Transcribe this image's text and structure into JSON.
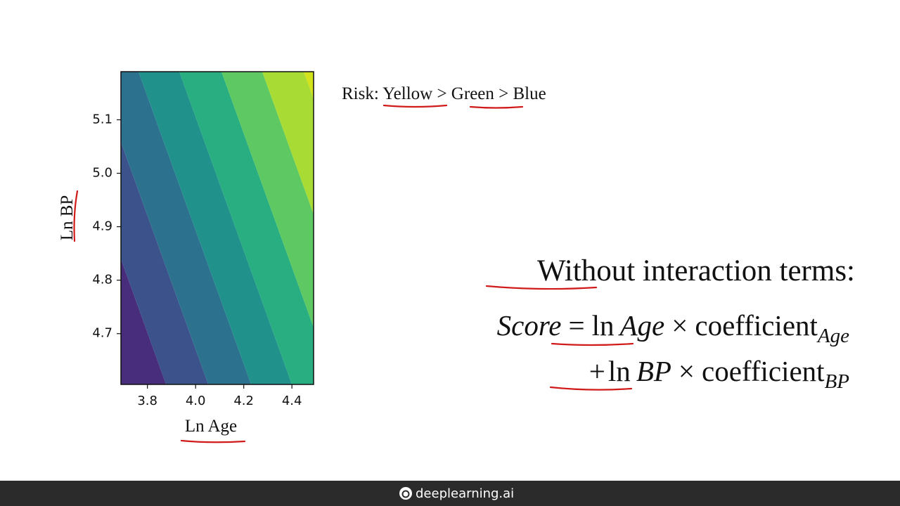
{
  "chart_data": {
    "type": "contour",
    "x_label": "Ln Age",
    "y_label": "Ln BP",
    "xlim": [
      3.69,
      4.49
    ],
    "ylim": [
      4.605,
      5.19
    ],
    "xticks": [
      3.8,
      {
        "value": 4,
        "label": "4.0"
      },
      4.2,
      4.4
    ],
    "yticks": [
      4.7,
      4.8,
      4.9,
      {
        "value": 5,
        "label": "5.0"
      },
      5.1
    ],
    "colors": [
      "#472d7b",
      "#3b528b",
      "#2c728e",
      "#21918c",
      "#28ae80",
      "#5ec962",
      "#a8db34",
      "#d2e21b"
    ]
  },
  "annotation": "Risk: Yellow > Green > Blue",
  "heading": "Without interaction terms:",
  "formula": {
    "lhs": "Score",
    "eq": "=",
    "ln": "ln",
    "var1": "Age",
    "times": "×",
    "coef": "coefficient",
    "sub1": "Age",
    "plus": "+",
    "var2": "BP",
    "sub2": "BP"
  },
  "footer": "deeplearning.ai"
}
